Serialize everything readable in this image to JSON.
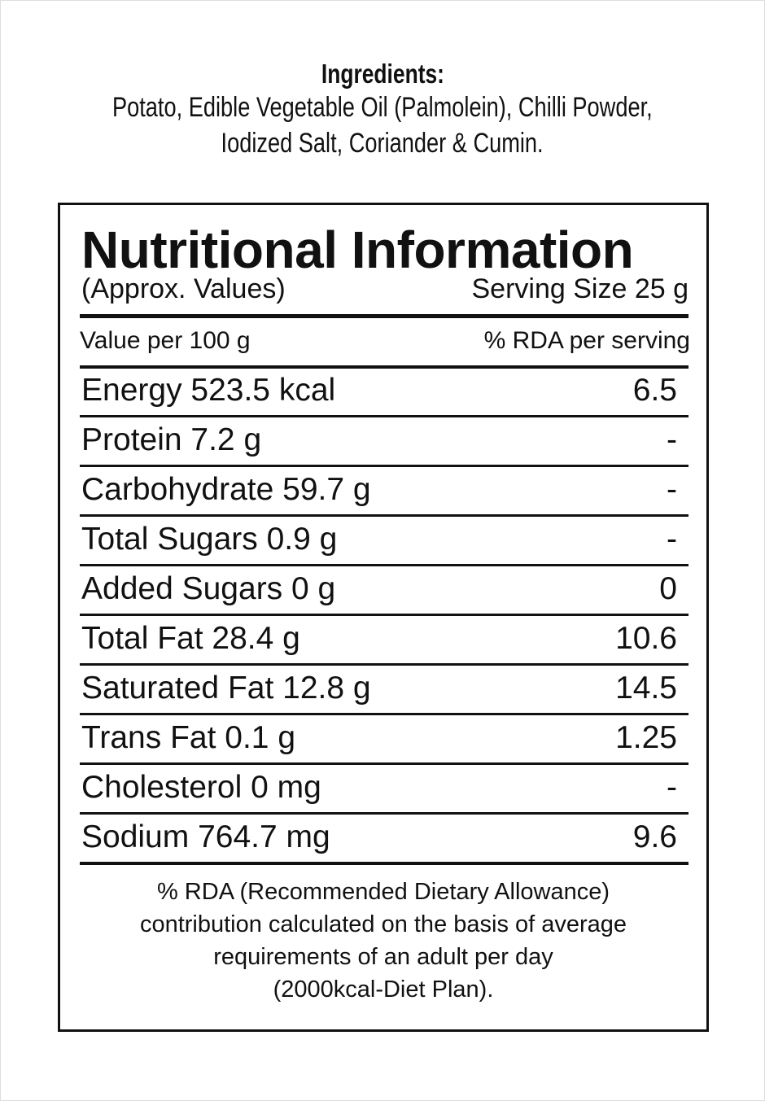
{
  "ingredients": {
    "title": "Ingredients:",
    "lines": [
      "Potato, Edible Vegetable Oil (Palmolein), Chilli Powder,",
      "Iodized Salt, Coriander & Cumin."
    ]
  },
  "panel": {
    "title": "Nutritional Information",
    "subtitle_left": "(Approx. Values)",
    "subtitle_right": "Serving Size 25 g",
    "header_left": "Value per 100 g",
    "header_right": "% RDA per serving",
    "rows": [
      [
        "Energy 523.5 kcal",
        "6.5"
      ],
      [
        "Protein 7.2 g",
        "-"
      ],
      [
        "Carbohydrate 59.7 g",
        "-"
      ],
      [
        "Total Sugars 0.9 g",
        "-"
      ],
      [
        "Added Sugars 0 g",
        "0"
      ],
      [
        "Total Fat 28.4 g",
        "10.6"
      ],
      [
        "Saturated Fat 12.8 g",
        "14.5"
      ],
      [
        "Trans Fat 0.1 g",
        "1.25"
      ],
      [
        "Cholesterol 0 mg",
        "-"
      ],
      [
        "Sodium 764.7 mg",
        "9.6"
      ]
    ],
    "footnote": [
      "% RDA (Recommended Dietary Allowance)",
      "contribution calculated on the basis of average",
      "requirements of an adult per day",
      "(2000kcal-Diet Plan)."
    ]
  }
}
